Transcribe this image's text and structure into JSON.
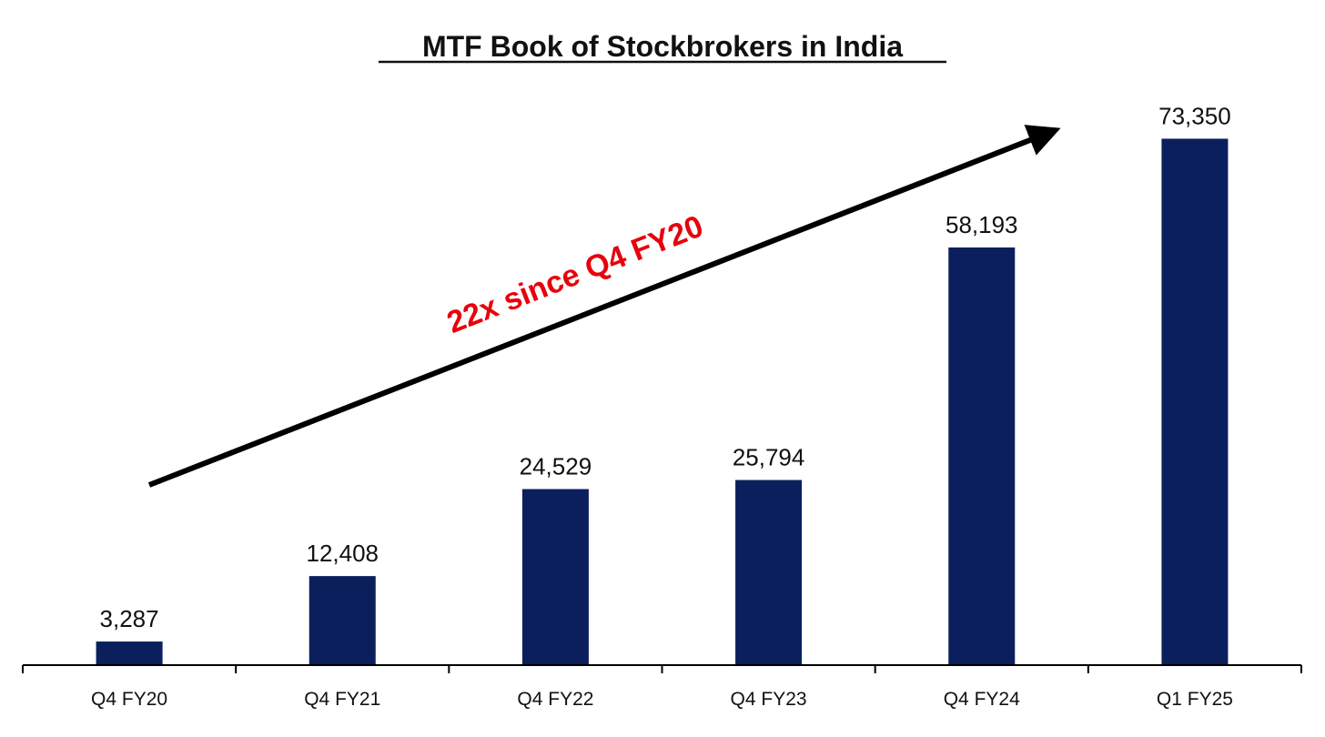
{
  "chart_data": {
    "type": "bar",
    "title": "MTF Book of Stockbrokers in India",
    "xlabel": "",
    "ylabel": "",
    "categories": [
      "Q4 FY20",
      "Q4 FY21",
      "Q4 FY22",
      "Q4 FY23",
      "Q4 FY24",
      "Q1 FY25"
    ],
    "values": [
      3287,
      12408,
      24529,
      25794,
      58193,
      73350
    ],
    "value_labels": [
      "3,287",
      "12,408",
      "24,529",
      "25,794",
      "58,193",
      "73,350"
    ],
    "ylim": [
      0,
      80000
    ],
    "grid": false,
    "legend": "none",
    "bar_color": "#0b1f5c",
    "annotation": {
      "text": "22x since Q4 FY20",
      "color": "#e8000b",
      "arrow_color": "#000000"
    }
  }
}
